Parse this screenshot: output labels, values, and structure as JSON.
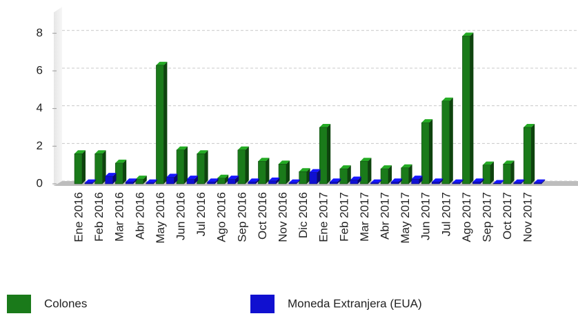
{
  "chart_data": {
    "type": "bar3d",
    "categories": [
      "Ene 2016",
      "Feb 2016",
      "Mar 2016",
      "Abr 2016",
      "May 2016",
      "Jun 2016",
      "Jul 2016",
      "Ago 2016",
      "Sep 2016",
      "Oct 2016",
      "Nov 2016",
      "Dic 2016",
      "Ene 2017",
      "Feb 2017",
      "Mar 2017",
      "Abr 2017",
      "May 2017",
      "Jun 2017",
      "Jul 2017",
      "Ago 2017",
      "Sep 2017",
      "Oct 2017",
      "Nov 2017"
    ],
    "series": [
      {
        "name": "Colones",
        "color": "#1a7a1a",
        "values": [
          1.6,
          1.6,
          1.1,
          0.25,
          6.3,
          1.8,
          1.6,
          0.3,
          1.8,
          1.2,
          1.05,
          0.65,
          3.0,
          0.8,
          1.2,
          0.8,
          0.85,
          3.25,
          4.4,
          7.85,
          1.0,
          1.05,
          3.0
        ]
      },
      {
        "name": "Moneda Extranjera (EUA)",
        "color": "#1010d0",
        "values": [
          0.05,
          0.4,
          0.1,
          0.05,
          0.35,
          0.25,
          0.1,
          0.25,
          0.1,
          0.15,
          0.05,
          0.6,
          0.1,
          0.2,
          0.05,
          0.1,
          0.25,
          0.1,
          0.05,
          0.1,
          0.02,
          0.05,
          0.05
        ]
      }
    ],
    "ylim": [
      0,
      9.4
    ],
    "yticks": [
      0,
      2,
      4,
      6,
      8
    ],
    "grid": true
  }
}
